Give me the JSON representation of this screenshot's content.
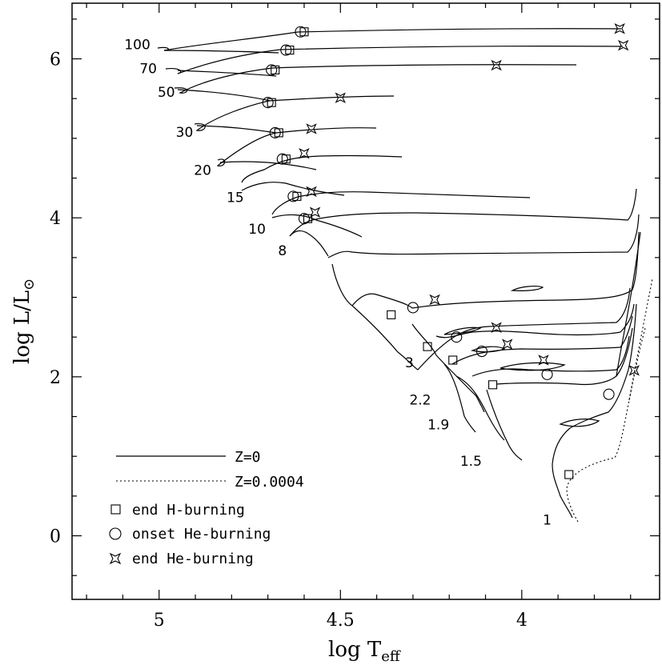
{
  "chart_data": {
    "type": "line",
    "xlabel": "log T",
    "xlabel_sub": "eff",
    "ylabel": "log L/L",
    "ylabel_symbol": "⊙",
    "xlim": [
      5.24,
      3.62
    ],
    "ylim": [
      -0.8,
      6.7
    ],
    "x_ticks": [
      {
        "v": 5,
        "label": "5"
      },
      {
        "v": 4.5,
        "label": "4.5"
      },
      {
        "v": 4,
        "label": "4"
      }
    ],
    "y_ticks": [
      {
        "v": 0,
        "label": "0"
      },
      {
        "v": 2,
        "label": "2"
      },
      {
        "v": 4,
        "label": "4"
      },
      {
        "v": 6,
        "label": "6"
      }
    ],
    "legend": {
      "lines": [
        {
          "label": "Z=0",
          "style": "solid"
        },
        {
          "label": "Z=0.0004",
          "style": "dotted"
        }
      ],
      "markers": [
        {
          "label": "end H-burning",
          "marker": "square"
        },
        {
          "label": "onset He-burning",
          "marker": "circle"
        },
        {
          "label": "end He-burning",
          "marker": "star"
        }
      ]
    },
    "series": [
      {
        "name": "100",
        "label_at": [
          5.06,
          6.12
        ],
        "points": [
          [
            5.0,
            6.13
          ],
          [
            4.85,
            6.22
          ],
          [
            4.6,
            6.34
          ],
          [
            4.2,
            6.37
          ],
          [
            3.8,
            6.37
          ],
          [
            3.72,
            6.36
          ]
        ],
        "end_H": [
          4.6,
          6.34
        ],
        "onset_He": [
          4.61,
          6.34
        ],
        "end_He": [
          3.73,
          6.38
        ]
      },
      {
        "name": "70",
        "label_at": [
          5.03,
          5.82
        ],
        "points": [
          [
            5.02,
            5.87
          ],
          [
            4.9,
            5.98
          ],
          [
            4.63,
            6.1
          ],
          [
            4.3,
            6.15
          ],
          [
            3.9,
            6.17
          ],
          [
            3.71,
            6.17
          ]
        ],
        "end_H": [
          4.64,
          6.11
        ],
        "onset_He": [
          4.65,
          6.11
        ],
        "end_He": [
          3.72,
          6.17
        ]
      },
      {
        "name": "50",
        "label_at": [
          4.98,
          5.52
        ],
        "points": [
          [
            4.97,
            5.6
          ],
          [
            4.85,
            5.7
          ],
          [
            4.68,
            5.86
          ],
          [
            4.4,
            5.89
          ],
          [
            4.1,
            5.92
          ],
          [
            3.9,
            5.92
          ]
        ],
        "end_H": [
          4.68,
          5.86
        ],
        "onset_He": [
          4.69,
          5.86
        ],
        "end_He": [
          4.07,
          5.92
        ]
      },
      {
        "name": "30",
        "label_at": [
          4.93,
          5.02
        ],
        "points": [
          [
            4.92,
            5.12
          ],
          [
            4.82,
            5.26
          ],
          [
            4.7,
            5.45
          ],
          [
            4.55,
            5.5
          ],
          [
            4.38,
            5.52
          ]
        ],
        "end_H": [
          4.69,
          5.45
        ],
        "onset_He": [
          4.7,
          5.45
        ],
        "end_He": [
          4.5,
          5.51
        ]
      },
      {
        "name": "20",
        "label_at": [
          4.88,
          4.54
        ],
        "points": [
          [
            4.88,
            5.15
          ],
          [
            4.78,
            5.12
          ],
          [
            4.68,
            5.08
          ],
          [
            4.52,
            5.12
          ],
          [
            4.4,
            5.11
          ]
        ],
        "end_H": [
          4.67,
          5.07
        ],
        "onset_He": [
          4.68,
          5.07
        ],
        "end_He": [
          4.58,
          5.12
        ]
      },
      {
        "name": "15",
        "label_at": [
          4.79,
          4.2
        ],
        "points": [
          [
            4.84,
            4.7
          ],
          [
            4.75,
            4.8
          ],
          [
            4.66,
            4.75
          ],
          [
            4.48,
            4.78
          ],
          [
            4.33,
            4.77
          ]
        ],
        "end_H": [
          4.65,
          4.74
        ],
        "onset_He": [
          4.66,
          4.74
        ],
        "end_He": [
          4.6,
          4.81
        ]
      },
      {
        "name": "10",
        "label_at": [
          4.73,
          3.8
        ],
        "points": [
          [
            4.77,
            4.35
          ],
          [
            4.68,
            4.3
          ],
          [
            4.5,
            4.3
          ],
          [
            4.2,
            4.27
          ],
          [
            4.02,
            4.25
          ]
        ],
        "end_H": [
          4.62,
          4.27
        ],
        "onset_He": [
          4.63,
          4.27
        ],
        "end_He": [
          4.58,
          4.33
        ]
      },
      {
        "name": "8",
        "label_at": [
          4.66,
          3.53
        ],
        "points": [
          [
            4.68,
            4.05
          ],
          [
            4.62,
            4.0
          ],
          [
            4.5,
            4.08
          ],
          [
            4.2,
            4.03
          ],
          [
            3.9,
            3.99
          ],
          [
            3.72,
            3.99
          ]
        ],
        "end_H": [
          4.59,
          3.99
        ],
        "onset_He": [
          4.6,
          3.99
        ],
        "end_He": [
          4.57,
          4.07
        ]
      },
      {
        "name": "3",
        "label_at": [
          4.31,
          2.12
        ],
        "points": [
          [
            4.52,
            3.22
          ],
          [
            4.45,
            3.0
          ],
          [
            4.36,
            2.78
          ],
          [
            4.3,
            2.87
          ],
          [
            4.15,
            2.92
          ],
          [
            3.9,
            2.92
          ],
          [
            3.72,
            2.92
          ]
        ],
        "end_H": [
          4.36,
          2.78
        ],
        "onset_He": [
          4.3,
          2.87
        ],
        "end_He": [
          4.24,
          2.97
        ]
      },
      {
        "name": "2.2",
        "label_at": [
          4.28,
          1.65
        ],
        "points": [
          [
            4.38,
            2.35
          ],
          [
            4.26,
            2.38
          ],
          [
            4.18,
            2.5
          ],
          [
            4.0,
            2.58
          ],
          [
            3.72,
            2.62
          ]
        ],
        "end_H": [
          4.26,
          2.38
        ],
        "onset_He": [
          4.18,
          2.5
        ],
        "end_He": [
          4.07,
          2.62
        ]
      },
      {
        "name": "1.9",
        "label_at": [
          4.23,
          1.34
        ],
        "points": [
          [
            4.32,
            2.12
          ],
          [
            4.19,
            2.21
          ],
          [
            4.1,
            2.32
          ],
          [
            3.9,
            2.4
          ],
          [
            3.72,
            2.45
          ]
        ],
        "end_H": [
          4.19,
          2.21
        ],
        "onset_He": [
          4.11,
          2.32
        ],
        "end_He": [
          4.04,
          2.41
        ]
      },
      {
        "name": "1.5",
        "label_at": [
          4.14,
          0.88
        ],
        "points": [
          [
            4.2,
            1.6
          ],
          [
            4.08,
            1.9
          ],
          [
            3.98,
            2.05
          ],
          [
            3.85,
            2.1
          ],
          [
            3.72,
            2.12
          ]
        ],
        "end_H": [
          4.08,
          1.9
        ],
        "onset_He": [
          3.93,
          2.03
        ],
        "end_He": [
          3.94,
          2.21
        ]
      },
      {
        "name": "1",
        "label_at": [
          3.93,
          0.14
        ],
        "points": [
          [
            3.87,
            0.22
          ],
          [
            3.89,
            0.77
          ],
          [
            3.85,
            1.38
          ],
          [
            3.8,
            1.65
          ],
          [
            3.72,
            1.85
          ],
          [
            3.69,
            2.08
          ]
        ],
        "end_H": [
          3.87,
          0.77
        ],
        "onset_He": [
          3.76,
          1.78
        ],
        "end_He": [
          3.69,
          2.08
        ]
      }
    ]
  }
}
